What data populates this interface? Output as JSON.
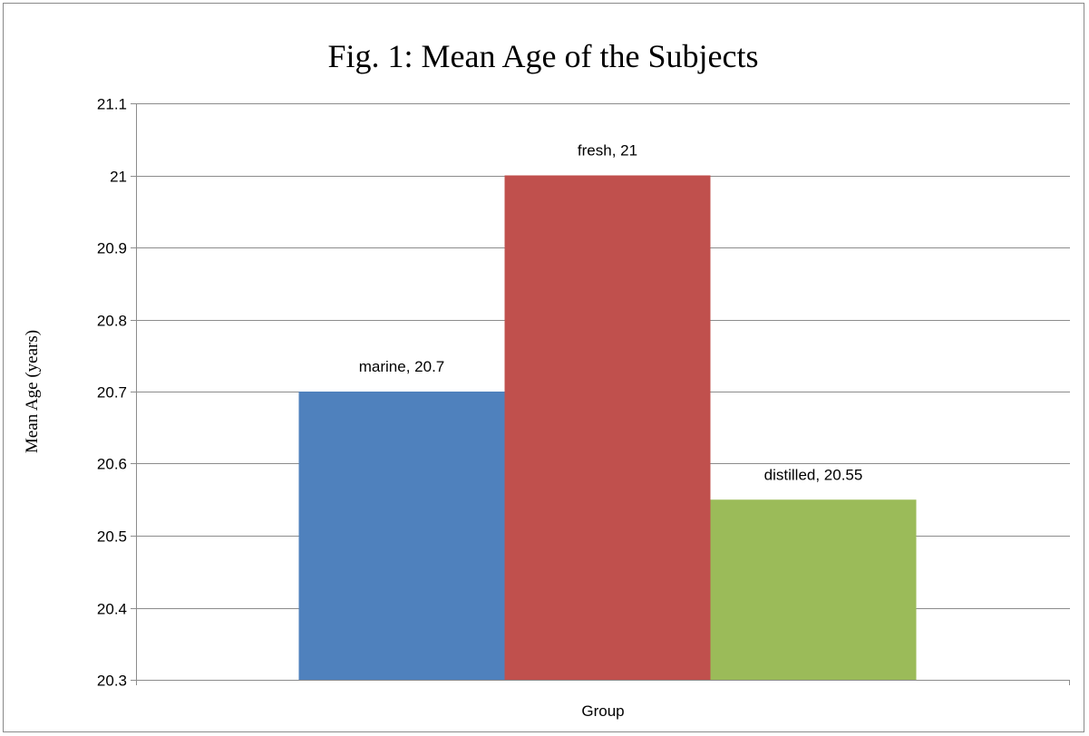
{
  "chart_data": {
    "type": "bar",
    "title": "Fig. 1: Mean Age of the Subjects",
    "xlabel": "Group",
    "ylabel": "Mean Age (years)",
    "ylim": [
      20.3,
      21.1
    ],
    "yticks": [
      "20.3",
      "20.4",
      "20.5",
      "20.6",
      "20.7",
      "20.8",
      "20.9",
      "21",
      "21.1"
    ],
    "grid": "horizontal",
    "legend": "none",
    "series": [
      {
        "category": "marine",
        "value": 20.7,
        "label": "marine, 20.7",
        "color": "#4f81bd"
      },
      {
        "category": "fresh",
        "value": 21,
        "label": "fresh, 21",
        "color": "#c0504d"
      },
      {
        "category": "distilled",
        "value": 20.55,
        "label": "distilled, 20.55",
        "color": "#9bbb59"
      }
    ]
  }
}
